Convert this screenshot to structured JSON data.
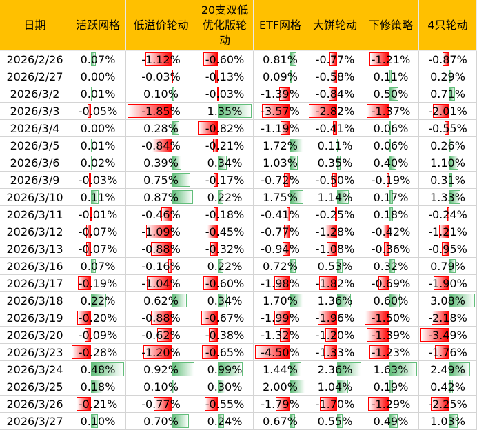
{
  "table": {
    "header": [
      "日期",
      "活跃网格",
      "低溢价轮动",
      "20支双低优化版轮动",
      "ETF网格",
      "大饼轮动",
      "下修策略",
      "4只轮动"
    ],
    "rows": [
      [
        "2026/2/26",
        "0.07%",
        "-1.12%",
        "-0.60%",
        "0.81%",
        "-0.77%",
        "-1.21%",
        "-0.87%"
      ],
      [
        "2026/2/27",
        "0.00%",
        "-0.03%",
        "-0.13%",
        "0.09%",
        "-0.58%",
        "0.11%",
        "0.29%"
      ],
      [
        "2026/3/2",
        "0.01%",
        "0.10%",
        "-0.03%",
        "-1.39%",
        "-0.84%",
        "0.50%",
        "0.71%"
      ],
      [
        "2026/3/3",
        "-0.05%",
        "-1.85%",
        "1.35%",
        "-3.57%",
        "-2.82%",
        "-1.37%",
        "-2.01%"
      ],
      [
        "2026/3/4",
        "0.00%",
        "0.28%",
        "-0.82%",
        "-1.19%",
        "-0.41%",
        "0.06%",
        "-0.55%"
      ],
      [
        "2026/3/5",
        "0.01%",
        "-0.84%",
        "-0.21%",
        "1.72%",
        "0.11%",
        "0.06%",
        "0.26%"
      ],
      [
        "2026/3/6",
        "0.02%",
        "0.39%",
        "0.34%",
        "1.03%",
        "0.35%",
        "0.40%",
        "1.10%"
      ],
      [
        "2026/3/9",
        "-0.03%",
        "0.75%",
        "-0.17%",
        "-0.72%",
        "-0.50%",
        "-0.19%",
        "0.31%"
      ],
      [
        "2026/3/10",
        "0.11%",
        "0.87%",
        "0.22%",
        "1.75%",
        "1.14%",
        "0.17%",
        "1.33%"
      ],
      [
        "2026/3/11",
        "-0.01%",
        "-0.46%",
        "-0.18%",
        "-0.41%",
        "-0.25%",
        "0.18%",
        "-0.24%"
      ],
      [
        "2026/3/12",
        "-0.07%",
        "-1.09%",
        "-0.45%",
        "-0.77%",
        "-1.28%",
        "-0.42%",
        "-1.21%"
      ],
      [
        "2026/3/13",
        "-0.07%",
        "-0.88%",
        "-0.32%",
        "-0.94%",
        "-1.08%",
        "-0.36%",
        "-0.95%"
      ],
      [
        "2026/3/16",
        "0.07%",
        "-0.16%",
        "0.22%",
        "0.72%",
        "0.53%",
        "0.32%",
        "0.79%"
      ],
      [
        "2026/3/17",
        "-0.19%",
        "-1.04%",
        "-0.60%",
        "-1.98%",
        "-1.82%",
        "-0.69%",
        "-1.90%"
      ],
      [
        "2026/3/18",
        "0.22%",
        "0.62%",
        "0.34%",
        "1.70%",
        "1.36%",
        "0.60%",
        "3.08%"
      ],
      [
        "2026/3/19",
        "-0.20%",
        "-0.88%",
        "-0.67%",
        "-1.99%",
        "-1.96%",
        "-1.50%",
        "-2.18%"
      ],
      [
        "2026/3/20",
        "-0.09%",
        "-0.62%",
        "-0.38%",
        "-1.32%",
        "-1.20%",
        "-1.39%",
        "-3.49%"
      ],
      [
        "2026/3/23",
        "-0.28%",
        "-1.20%",
        "-0.65%",
        "-4.50%",
        "-1.33%",
        "-1.23%",
        "-1.76%"
      ],
      [
        "2026/3/24",
        "0.48%",
        "0.92%",
        "0.99%",
        "1.44%",
        "2.36%",
        "1.63%",
        "2.49%"
      ],
      [
        "2026/3/25",
        "0.18%",
        "0.10%",
        "0.30%",
        "2.00%",
        "1.04%",
        "0.19%",
        "0.42%"
      ],
      [
        "2026/3/26",
        "-0.21%",
        "-0.77%",
        "-0.55%",
        "-1.79%",
        "-1.70%",
        "-1.29%",
        "-2.25%"
      ],
      [
        "2026/3/27",
        "0.10%",
        "0.70%",
        "0.24%",
        "0.67%",
        "0.55%",
        "0.49%",
        "1.03%"
      ]
    ]
  }
}
